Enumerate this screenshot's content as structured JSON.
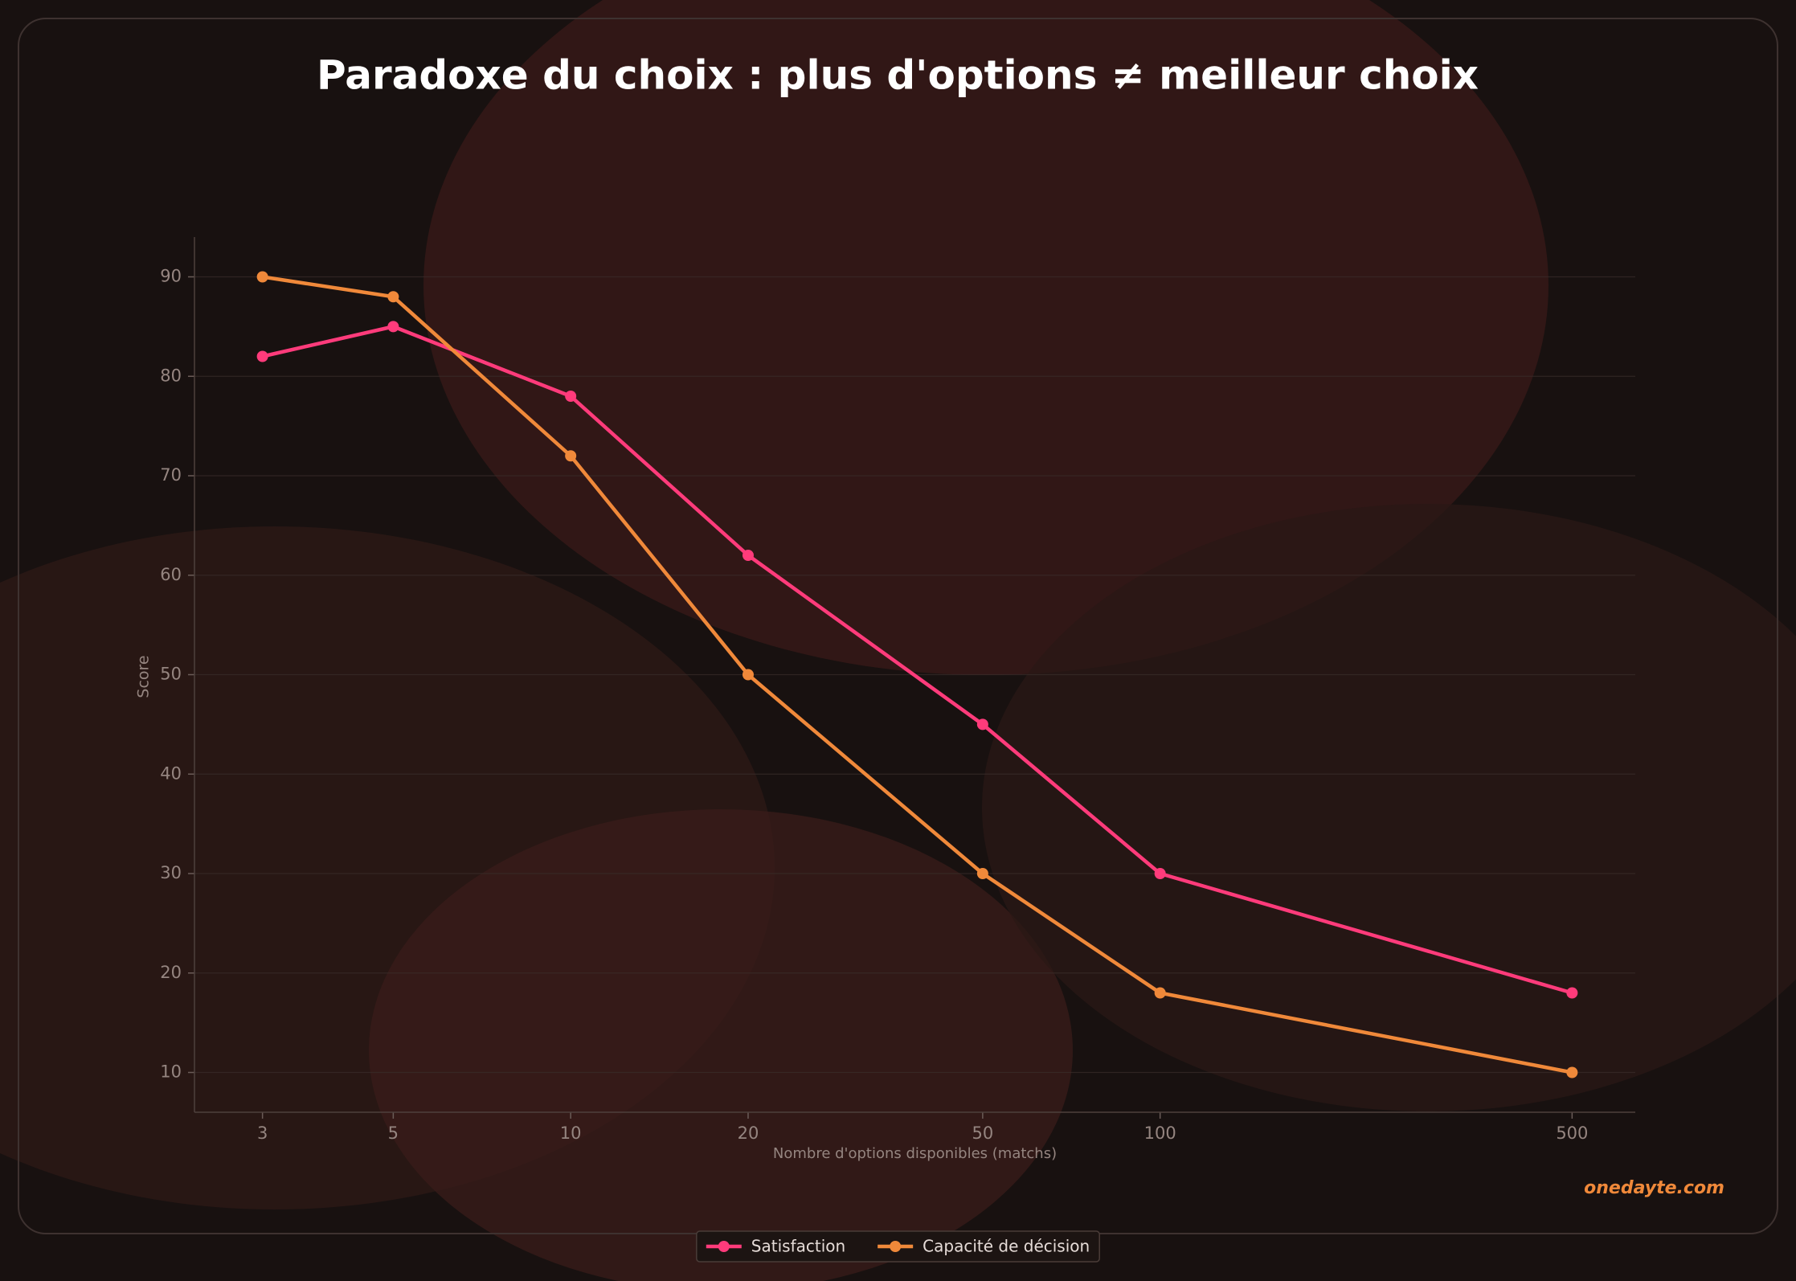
{
  "chart_data": {
    "type": "line",
    "title": "Paradoxe du choix : plus d'options ≠ meilleur choix",
    "x_label": "Nombre d'options disponibles (matchs)",
    "y_label": "Score",
    "watermark": "onedayte.com",
    "x": [
      3,
      5,
      10,
      20,
      50,
      100,
      500
    ],
    "series": [
      {
        "name": "Satisfaction",
        "color": "#ff3b7b",
        "values": [
          82,
          85,
          78,
          62,
          45,
          30,
          18
        ]
      },
      {
        "name": "Capacité de décision",
        "color": "#f0893a",
        "values": [
          90,
          88,
          72,
          50,
          30,
          18,
          10
        ]
      }
    ],
    "x_scale": "log",
    "xlim": [
      2.3,
      640
    ],
    "xticks": [
      3,
      5,
      10,
      20,
      50,
      100,
      500
    ],
    "ylim": [
      6,
      94
    ],
    "yticks": [
      10,
      20,
      30,
      40,
      50,
      60,
      70,
      80,
      90
    ],
    "grid": true,
    "legend_position": "bottom"
  }
}
